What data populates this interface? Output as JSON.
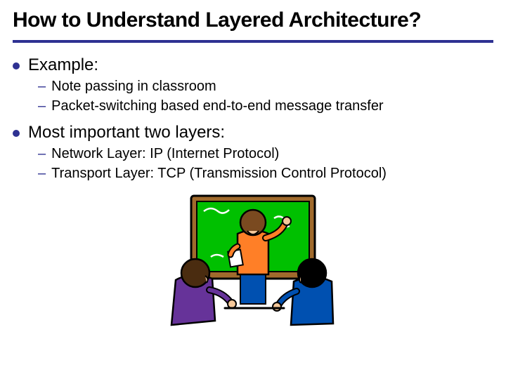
{
  "title": "How to Understand Layered Architecture?",
  "title_fontsize": 30,
  "underline_color": "#2e3192",
  "bullet_color": "#2e3192",
  "bullet_size": 10,
  "dash_color": "#2e3192",
  "body_fontsize": 24,
  "sub_fontsize": 20,
  "bullets": [
    {
      "text": "Example:",
      "subs": [
        "Note passing in classroom",
        "Packet-switching based end-to-end message transfer"
      ]
    },
    {
      "text": "Most important two layers:",
      "subs": [
        "Network Layer: IP (Internet Protocol)",
        "Transport Layer: TCP (Transmission Control Protocol)"
      ]
    }
  ],
  "illustration": {
    "board_color": "#00c000",
    "board_frame": "#a06a2c",
    "person_left_shirt": "#663399",
    "person_left_hair": "#4a2c10",
    "person_mid_shirt": "#ff7f27",
    "person_mid_hair": "#7a4a20",
    "person_right_shirt": "#0050b0",
    "person_right_hair": "#000000",
    "skin": "#f5c89a",
    "chalk_paper": "#ffffff"
  }
}
